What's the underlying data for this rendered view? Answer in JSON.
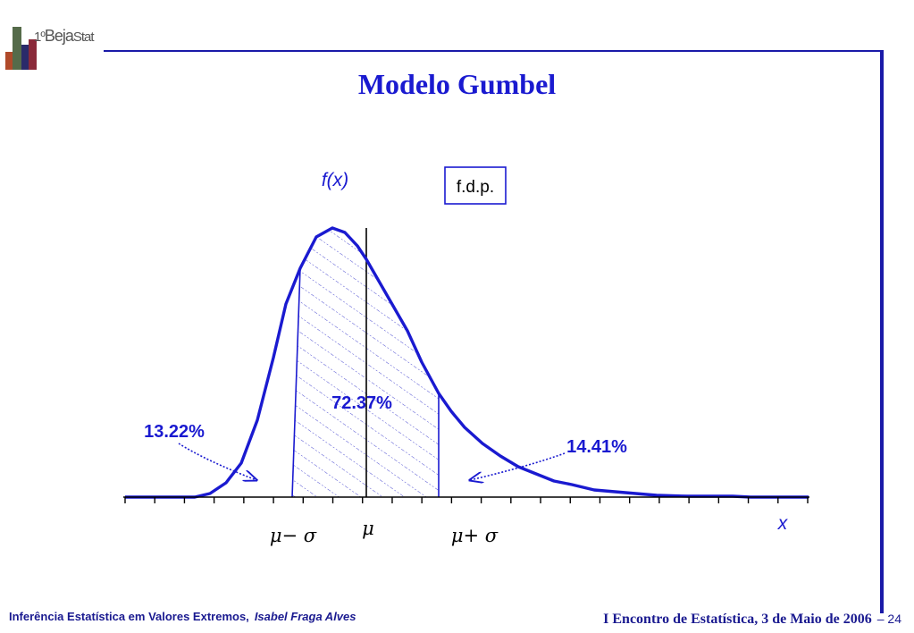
{
  "logo": {
    "prefix": "1º",
    "word_a": "Beja",
    "word_b": "Stat"
  },
  "title": "Modelo Gumbel",
  "chart_data": {
    "type": "area",
    "distribution": "Gumbel",
    "ylabel": "f(x)",
    "xlabel": "x",
    "legend_box": "f.d.p.",
    "x_marks": [
      "μ− σ",
      "μ",
      "μ+ σ"
    ],
    "regions": [
      {
        "name": "left-tail",
        "label": "13.22%",
        "percent": 13.22
      },
      {
        "name": "center",
        "label": "72.37%",
        "percent": 72.37
      },
      {
        "name": "right-tail",
        "label": "14.41%",
        "percent": 14.41
      }
    ]
  },
  "footer": {
    "course": "Inferência Estatística em Valores Extremos,",
    "author": "Isabel Fraga Alves",
    "event": "I Encontro de Estatística, 3 de Maio de 2006",
    "page": "– 24"
  }
}
